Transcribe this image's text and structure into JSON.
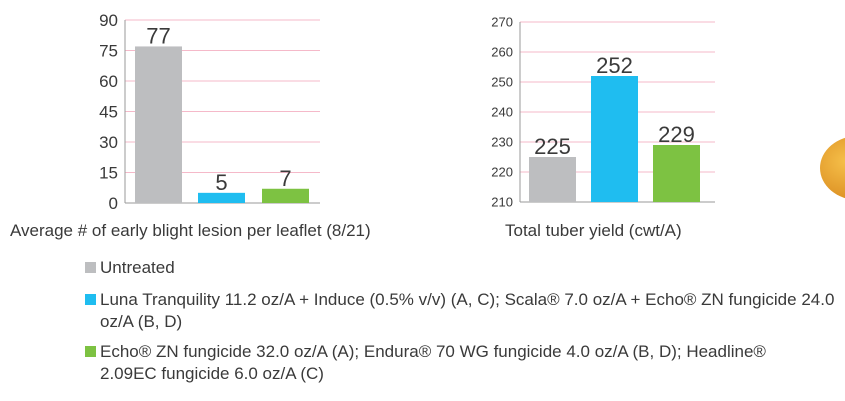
{
  "chart_data": [
    {
      "type": "bar",
      "x_label": "Average # of early blight lesion per leaflet (8/21)",
      "categories": [
        null,
        null,
        null
      ],
      "values": [
        77,
        5,
        7
      ],
      "ylim": [
        0,
        90
      ],
      "yticks": [
        0,
        15,
        30,
        45,
        60,
        75,
        90
      ],
      "grid": true
    },
    {
      "type": "bar",
      "x_label": "Total tuber yield (cwt/A)",
      "categories": [
        null,
        null,
        null
      ],
      "values": [
        225,
        252,
        229
      ],
      "ylim": [
        210,
        270
      ],
      "yticks": [
        210,
        220,
        230,
        240,
        250,
        260,
        270
      ],
      "grid": true
    }
  ],
  "legend": {
    "items": [
      {
        "name": "Untreated",
        "color": "#bdbec0"
      },
      {
        "name": "Luna Tranquility 11.2 oz/A + Induce (0.5% v/v) (A, C); Scala® 7.0 oz/A + Echo® ZN fungicide 24.0 oz/A (B, D)",
        "color": "#1fbdf0"
      },
      {
        "name": "Echo® ZN fungicide 32.0 oz/A (A); Endura® 70 WG fungicide 4.0 oz/A (B, D); Headline® 2.09EC fungicide 6.0 oz/A (C)",
        "color": "#7dc242"
      }
    ]
  }
}
